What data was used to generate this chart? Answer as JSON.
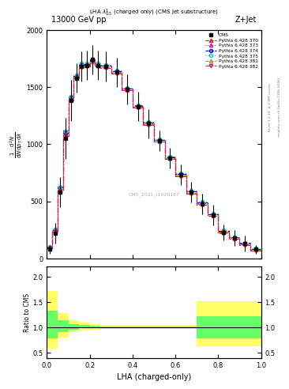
{
  "title_top": "13000 GeV pp",
  "title_right": "Z+Jet",
  "plot_title": "LHA $\\lambda^{1}_{0.5}$ (charged only) (CMS jet substructure)",
  "xlabel": "LHA (charged-only)",
  "ylabel_ratio": "Ratio to CMS",
  "rivet_label": "Rivet 3.1.10, ≥ 2.8M events",
  "mcplots_label": "mcplots.cern.ch [arXiv:1306.3436]",
  "watermark_text": "CMS_2021_I1920187",
  "xbins": [
    0.0,
    0.025,
    0.05,
    0.075,
    0.1,
    0.125,
    0.15,
    0.175,
    0.2,
    0.225,
    0.25,
    0.3,
    0.35,
    0.4,
    0.45,
    0.5,
    0.55,
    0.6,
    0.65,
    0.7,
    0.75,
    0.8,
    0.85,
    0.9,
    0.95,
    1.0
  ],
  "cms_values": [
    80,
    220,
    580,
    1050,
    1380,
    1580,
    1680,
    1690,
    1740,
    1690,
    1680,
    1630,
    1480,
    1330,
    1180,
    1030,
    880,
    730,
    580,
    480,
    380,
    230,
    180,
    130,
    80
  ],
  "cms_errors": [
    40,
    90,
    130,
    180,
    180,
    130,
    130,
    130,
    130,
    130,
    130,
    130,
    130,
    130,
    130,
    90,
    90,
    90,
    90,
    90,
    90,
    70,
    70,
    70,
    40
  ],
  "pythia_lines": [
    {
      "label": "Pythia 6.428 370",
      "color": "#ff0000",
      "linestyle": "--",
      "marker": "^",
      "markerfacecolor": "none",
      "values": [
        100,
        250,
        630,
        1120,
        1420,
        1600,
        1700,
        1700,
        1740,
        1700,
        1690,
        1640,
        1490,
        1340,
        1190,
        1040,
        890,
        740,
        590,
        490,
        390,
        240,
        185,
        135,
        85
      ]
    },
    {
      "label": "Pythia 6.428 373",
      "color": "#cc00cc",
      "linestyle": ":",
      "marker": "^",
      "markerfacecolor": "none",
      "values": [
        95,
        240,
        610,
        1090,
        1400,
        1590,
        1690,
        1695,
        1735,
        1695,
        1685,
        1635,
        1485,
        1335,
        1185,
        1035,
        885,
        735,
        585,
        485,
        385,
        235,
        182,
        132,
        82
      ]
    },
    {
      "label": "Pythia 6.428 374",
      "color": "#0000cc",
      "linestyle": "--",
      "marker": "o",
      "markerfacecolor": "none",
      "values": [
        98,
        248,
        620,
        1100,
        1410,
        1595,
        1695,
        1697,
        1737,
        1697,
        1687,
        1637,
        1487,
        1337,
        1187,
        1037,
        887,
        737,
        587,
        487,
        387,
        237,
        183,
        133,
        83
      ]
    },
    {
      "label": "Pythia 6.428 375",
      "color": "#00cccc",
      "linestyle": ":",
      "marker": "o",
      "markerfacecolor": "none",
      "values": [
        102,
        255,
        625,
        1110,
        1415,
        1605,
        1705,
        1705,
        1745,
        1705,
        1695,
        1645,
        1495,
        1345,
        1195,
        1045,
        895,
        745,
        595,
        495,
        395,
        245,
        188,
        138,
        88
      ]
    },
    {
      "label": "Pythia 6.428 381",
      "color": "#cc8800",
      "linestyle": "--",
      "marker": "^",
      "markerfacecolor": "none",
      "values": [
        90,
        235,
        600,
        1080,
        1390,
        1580,
        1680,
        1685,
        1725,
        1685,
        1675,
        1625,
        1475,
        1325,
        1175,
        1025,
        875,
        725,
        575,
        475,
        375,
        225,
        175,
        125,
        75
      ]
    },
    {
      "label": "Pythia 6.428 382",
      "color": "#ff0066",
      "linestyle": "-.",
      "marker": "v",
      "markerfacecolor": "none",
      "values": [
        88,
        232,
        595,
        1075,
        1385,
        1575,
        1675,
        1680,
        1720,
        1680,
        1670,
        1620,
        1470,
        1320,
        1170,
        1020,
        870,
        720,
        570,
        470,
        370,
        220,
        170,
        120,
        70
      ]
    }
  ],
  "ratio_xbins": [
    0.0,
    0.05,
    0.1,
    0.15,
    0.2,
    0.25,
    0.3,
    0.35,
    0.4,
    0.45,
    0.5,
    0.55,
    0.6,
    0.65,
    0.7,
    0.75,
    0.8,
    0.85,
    0.9,
    0.95,
    1.0
  ],
  "ratio_green_lo": [
    0.78,
    0.9,
    0.96,
    0.98,
    0.99,
    0.99,
    0.99,
    0.99,
    0.99,
    0.99,
    0.99,
    0.99,
    0.99,
    0.99,
    0.78,
    0.78,
    0.78,
    0.78,
    0.78,
    0.78
  ],
  "ratio_green_hi": [
    1.32,
    1.14,
    1.06,
    1.04,
    1.03,
    1.02,
    1.02,
    1.02,
    1.02,
    1.02,
    1.02,
    1.02,
    1.02,
    1.02,
    1.22,
    1.22,
    1.22,
    1.22,
    1.22,
    1.22
  ],
  "ratio_yellow_lo": [
    0.58,
    0.8,
    0.9,
    0.94,
    0.96,
    0.97,
    0.97,
    0.97,
    0.97,
    0.97,
    0.97,
    0.97,
    0.97,
    0.97,
    0.62,
    0.62,
    0.62,
    0.62,
    0.62,
    0.62
  ],
  "ratio_yellow_hi": [
    1.72,
    1.28,
    1.14,
    1.1,
    1.07,
    1.05,
    1.05,
    1.05,
    1.05,
    1.05,
    1.05,
    1.05,
    1.05,
    1.05,
    1.52,
    1.52,
    1.52,
    1.52,
    1.52,
    1.52
  ],
  "ylim_main": [
    0,
    2000
  ],
  "ylim_ratio": [
    0.4,
    2.2
  ],
  "yticks_main": [
    0,
    500,
    1000,
    1500,
    2000
  ],
  "yticks_ratio": [
    0.5,
    1.0,
    1.5,
    2.0
  ],
  "background_color": "#ffffff"
}
